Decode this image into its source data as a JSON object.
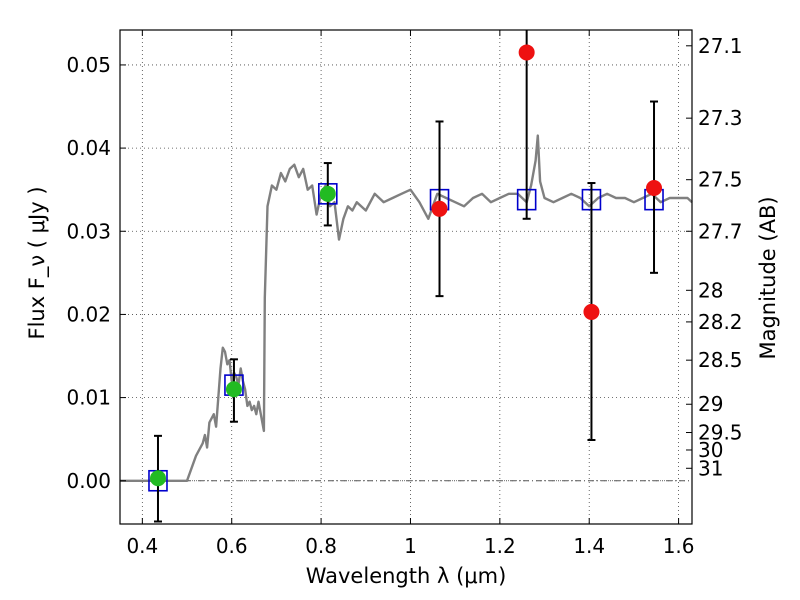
{
  "chart_data": {
    "type": "scatter",
    "xlabel": "Wavelength  λ (μm)",
    "ylabel": "Flux  F_ν  ( μJy )",
    "ylabel_right": "Magnitude (AB)",
    "xlim": [
      0.35,
      1.63
    ],
    "ylim": [
      -0.0052,
      0.0542
    ],
    "grid": true,
    "x_ticks": [
      0.4,
      0.6,
      0.8,
      1.0,
      1.2,
      1.4,
      1.6
    ],
    "x_tick_labels": [
      "0.4",
      "0.6",
      "0.8",
      "1",
      "1.2",
      "1.4",
      "1.6"
    ],
    "y_ticks": [
      0.0,
      0.01,
      0.02,
      0.03,
      0.04,
      0.05
    ],
    "y_tick_labels": [
      "0.00",
      "0.01",
      "0.02",
      "0.03",
      "0.04",
      "0.05"
    ],
    "mag_ticks": [
      {
        "label": "27.1",
        "y": 0.0523
      },
      {
        "label": "27.3",
        "y": 0.0436
      },
      {
        "label": "27.5",
        "y": 0.0362
      },
      {
        "label": "27.7",
        "y": 0.03
      },
      {
        "label": "28",
        "y": 0.0229
      },
      {
        "label": "28.2",
        "y": 0.0191
      },
      {
        "label": "28.5",
        "y": 0.0145
      },
      {
        "label": "29",
        "y": 0.0092
      },
      {
        "label": "29.5",
        "y": 0.0058
      },
      {
        "label": "30",
        "y": 0.0037
      },
      {
        "label": "31",
        "y": 0.0015
      }
    ],
    "series": [
      {
        "type": "line",
        "color": "#808080",
        "x": [
          0.35,
          0.4,
          0.43,
          0.45,
          0.48,
          0.5,
          0.52,
          0.535,
          0.54,
          0.545,
          0.55,
          0.56,
          0.565,
          0.57,
          0.575,
          0.58,
          0.585,
          0.59,
          0.595,
          0.6,
          0.605,
          0.61,
          0.615,
          0.62,
          0.625,
          0.63,
          0.635,
          0.64,
          0.645,
          0.65,
          0.655,
          0.66,
          0.665,
          0.672,
          0.674,
          0.68,
          0.69,
          0.7,
          0.71,
          0.72,
          0.73,
          0.74,
          0.75,
          0.76,
          0.77,
          0.78,
          0.79,
          0.8,
          0.81,
          0.82,
          0.83,
          0.84,
          0.85,
          0.86,
          0.87,
          0.88,
          0.9,
          0.92,
          0.94,
          0.96,
          0.98,
          1.0,
          1.02,
          1.04,
          1.06,
          1.08,
          1.1,
          1.12,
          1.14,
          1.16,
          1.18,
          1.2,
          1.22,
          1.24,
          1.26,
          1.27,
          1.28,
          1.285,
          1.29,
          1.3,
          1.32,
          1.34,
          1.36,
          1.38,
          1.4,
          1.42,
          1.44,
          1.46,
          1.48,
          1.5,
          1.52,
          1.54,
          1.56,
          1.58,
          1.6,
          1.62,
          1.63
        ],
        "y": [
          0.0,
          0.0,
          0.0,
          0.0,
          0.0,
          0.0,
          0.003,
          0.0045,
          0.0055,
          0.004,
          0.007,
          0.008,
          0.0065,
          0.01,
          0.0135,
          0.016,
          0.0155,
          0.014,
          0.0145,
          0.012,
          0.013,
          0.0125,
          0.0115,
          0.0135,
          0.012,
          0.011,
          0.009,
          0.0095,
          0.0085,
          0.009,
          0.008,
          0.0095,
          0.008,
          0.006,
          0.022,
          0.033,
          0.0355,
          0.035,
          0.037,
          0.036,
          0.0375,
          0.038,
          0.0365,
          0.0375,
          0.035,
          0.0355,
          0.032,
          0.0345,
          0.0355,
          0.033,
          0.0335,
          0.029,
          0.0315,
          0.033,
          0.0325,
          0.0335,
          0.0325,
          0.0345,
          0.0335,
          0.034,
          0.0345,
          0.035,
          0.0335,
          0.0315,
          0.0345,
          0.034,
          0.0335,
          0.033,
          0.034,
          0.0345,
          0.0335,
          0.034,
          0.0345,
          0.0345,
          0.0335,
          0.0355,
          0.0385,
          0.0415,
          0.036,
          0.034,
          0.0335,
          0.034,
          0.0345,
          0.034,
          0.033,
          0.034,
          0.0345,
          0.034,
          0.034,
          0.0335,
          0.034,
          0.0345,
          0.0335,
          0.034,
          0.034,
          0.034,
          0.0335
        ]
      },
      {
        "type": "square",
        "color": "#0000cc",
        "x": [
          0.435,
          0.605,
          0.815,
          1.065,
          1.26,
          1.405,
          1.545
        ],
        "y": [
          0.0,
          0.0115,
          0.0345,
          0.0338,
          0.0338,
          0.0338,
          0.0338
        ]
      },
      {
        "type": "errorbar",
        "color": "#000000",
        "x": [
          0.435,
          0.605,
          0.815,
          1.065,
          1.26,
          1.405,
          1.545
        ],
        "y": [
          0.0003,
          0.011,
          0.0345,
          0.0327,
          0.0515,
          0.0203,
          0.0352
        ],
        "yerr_low": [
          -0.0049,
          0.0071,
          0.0307,
          0.0222,
          0.0315,
          0.0049,
          0.025
        ],
        "yerr_high": [
          0.0054,
          0.0146,
          0.0382,
          0.0432,
          0.0542,
          0.0358,
          0.0456
        ]
      },
      {
        "type": "circle",
        "color": "#22bb22",
        "x": [
          0.435,
          0.605,
          0.815
        ],
        "y": [
          0.0003,
          0.011,
          0.0345
        ]
      },
      {
        "type": "circle",
        "color": "#ee1111",
        "x": [
          1.065,
          1.26,
          1.405,
          1.545
        ],
        "y": [
          0.0327,
          0.0515,
          0.0203,
          0.0352
        ]
      }
    ]
  }
}
